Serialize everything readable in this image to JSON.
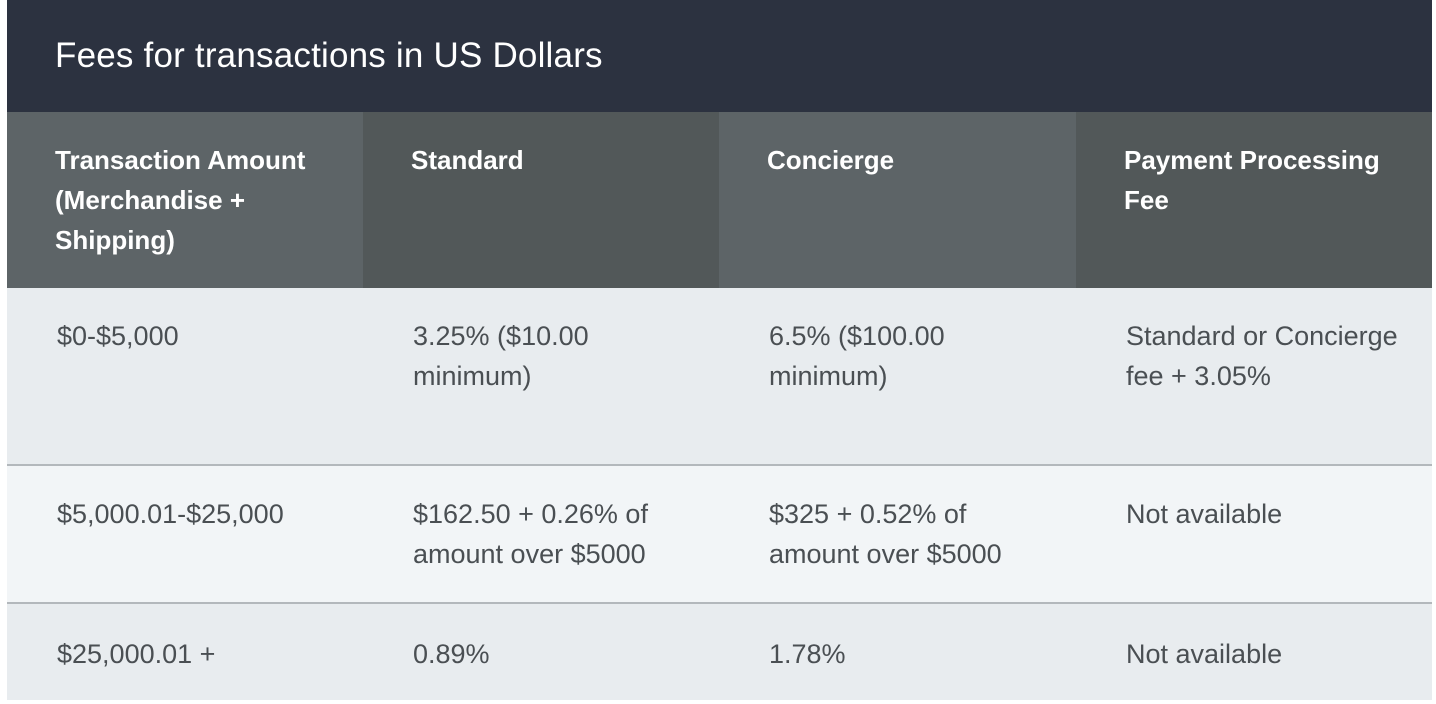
{
  "title": "Fees for transactions in US Dollars",
  "table": {
    "headers": [
      "Transaction Amount (Merchandise + Shipping)",
      "Standard",
      "Concierge",
      "Payment Processing Fee"
    ],
    "rows": [
      [
        "$0-$5,000",
        "3.25% ($10.00 minimum)",
        "6.5% ($100.00 minimum)",
        "Standard or Concierge fee + 3.05%"
      ],
      [
        "$5,000.01-$25,000",
        "$162.50 + 0.26% of amount over $5000",
        "$325 + 0.52% of amount over $5000",
        "Not available"
      ],
      [
        "$25,000.01 +",
        "0.89%",
        "1.78%",
        "Not available"
      ]
    ]
  },
  "colors": {
    "title_bg": "#2c3240",
    "header_bg_light": "#5d6467",
    "header_bg_dark": "#525859",
    "row_bg_a": "#e8ecef",
    "row_bg_b": "#f2f5f7",
    "text": "#4a4f53"
  }
}
